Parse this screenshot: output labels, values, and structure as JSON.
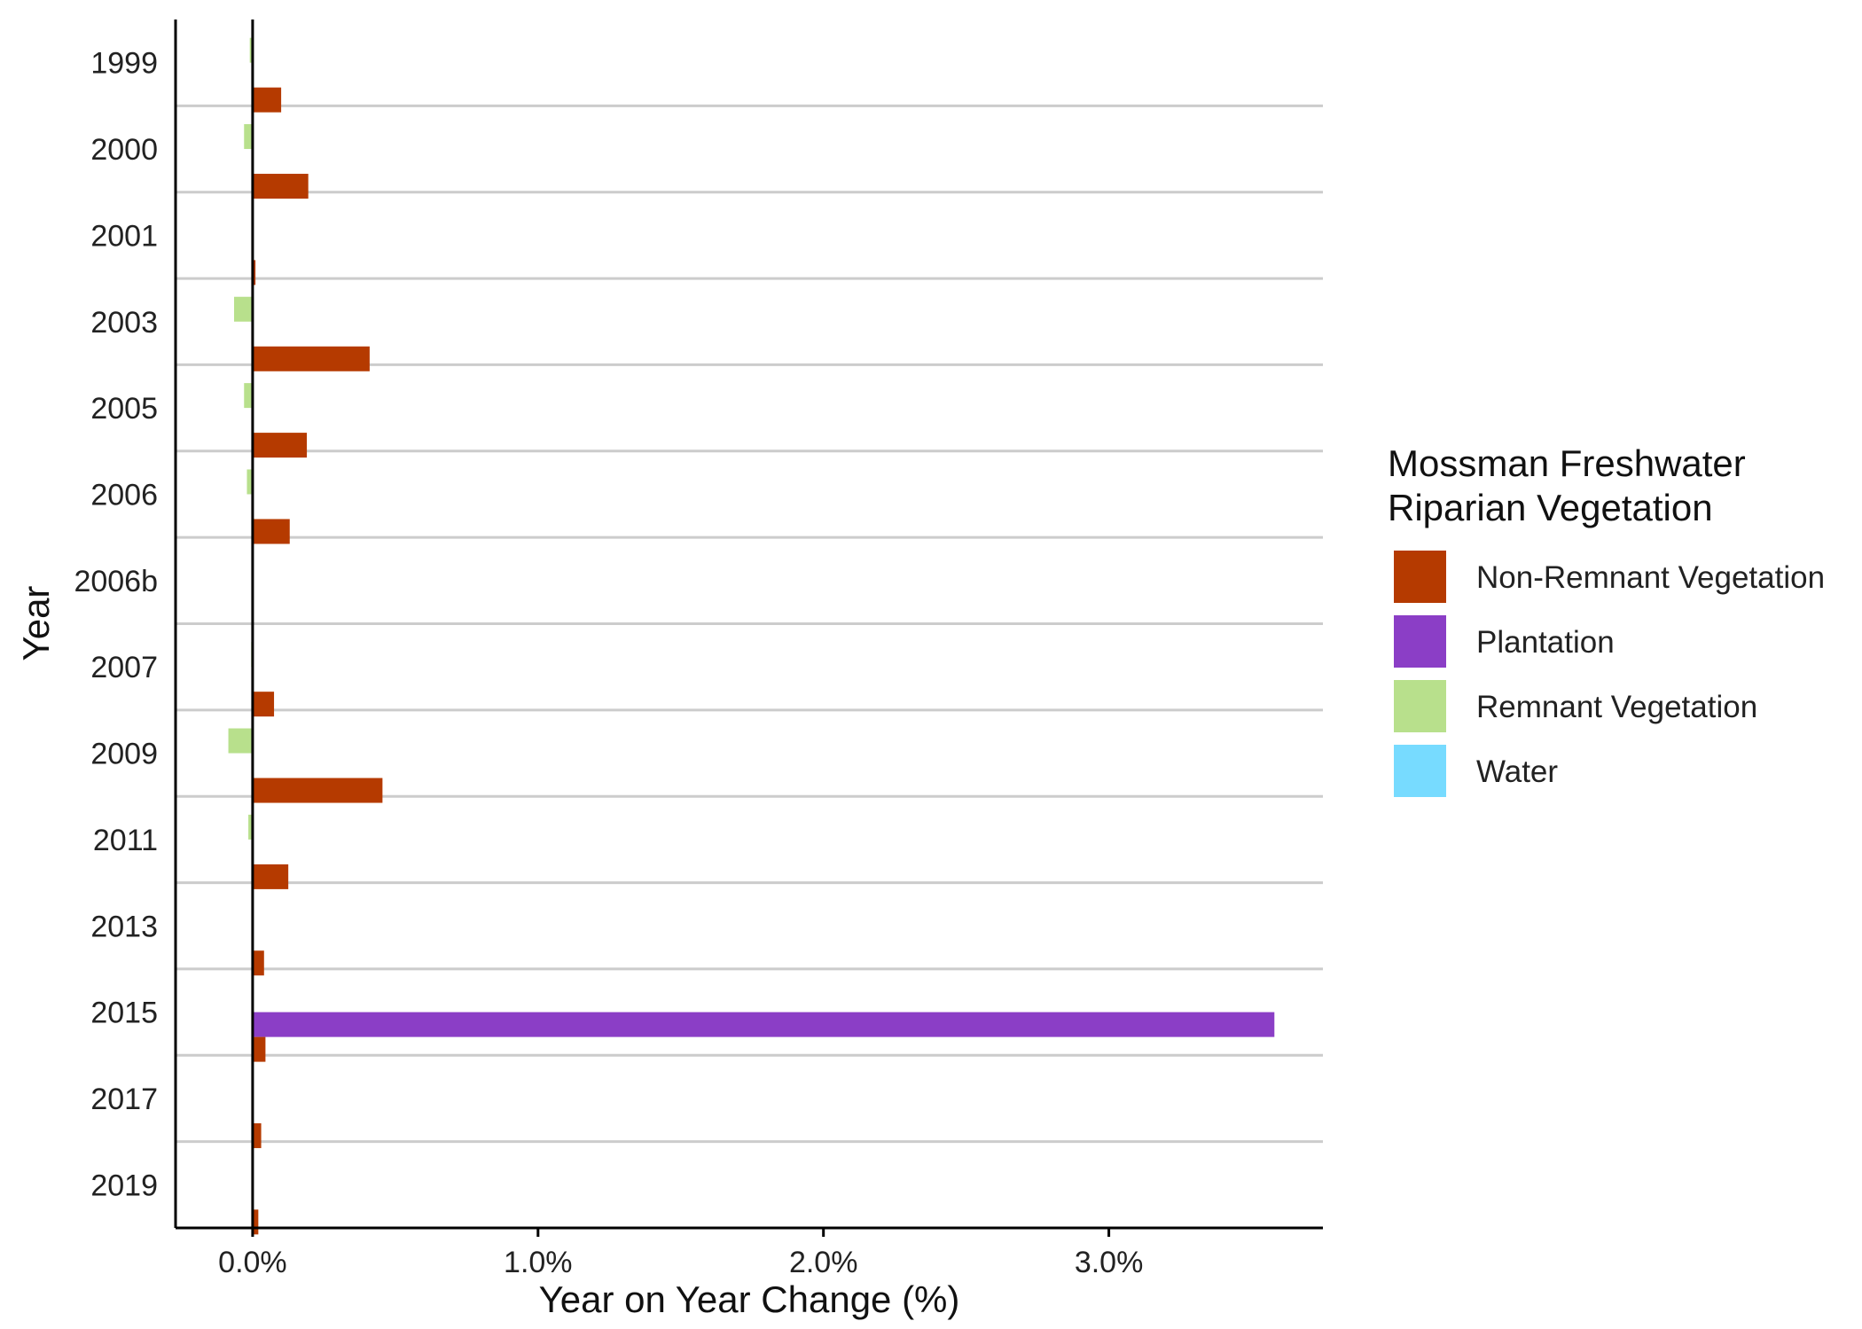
{
  "chart_data": {
    "type": "bar",
    "orientation": "horizontal",
    "title": "",
    "xlabel": "Year on Year Change (%)",
    "ylabel": "Year",
    "xlim": [
      -0.27,
      3.75
    ],
    "x_ticks": [
      0,
      1,
      2,
      3
    ],
    "x_tick_labels": [
      "0.0%",
      "1.0%",
      "2.0%",
      "3.0%"
    ],
    "grid": "horizontal separators between categories",
    "categories": [
      "1999",
      "2000",
      "2001",
      "2003",
      "2005",
      "2006",
      "2006b",
      "2007",
      "2009",
      "2011",
      "2013",
      "2015",
      "2017",
      "2019"
    ],
    "series": [
      {
        "name": "Non-Remnant Vegetation",
        "color": "#B53A00",
        "values": [
          0.1,
          0.195,
          0.01,
          0.41,
          0.19,
          0.13,
          0,
          0.075,
          0.455,
          0.125,
          0.04,
          0.045,
          0.03,
          0.02
        ]
      },
      {
        "name": "Plantation",
        "color": "#8B3EC6",
        "values": [
          0,
          0,
          0,
          0,
          0,
          0,
          0,
          0,
          0,
          0,
          0,
          3.58,
          0,
          0
        ]
      },
      {
        "name": "Remnant Vegetation",
        "color": "#B8E08C",
        "values": [
          -0.01,
          -0.03,
          0,
          -0.065,
          -0.03,
          -0.02,
          0,
          -0.005,
          -0.085,
          -0.015,
          0,
          0,
          0,
          0
        ]
      },
      {
        "name": "Water",
        "color": "#77DBFF",
        "values": [
          0,
          0,
          0,
          0,
          0,
          0,
          0,
          0,
          0,
          0,
          0,
          0,
          0,
          0
        ]
      }
    ],
    "legend": {
      "title_lines": [
        "Mossman Freshwater",
        "Riparian Vegetation"
      ],
      "position": "right"
    }
  }
}
